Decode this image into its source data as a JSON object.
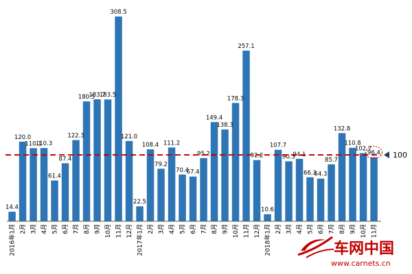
{
  "chart_data": {
    "type": "bar",
    "title": "",
    "xlabel": "",
    "ylabel": "",
    "ylim": [
      0,
      320
    ],
    "grid": false,
    "categories": [
      "2016年1月",
      "2月",
      "3月",
      "4月",
      "5月",
      "6月",
      "7月",
      "8月",
      "9月",
      "10月",
      "11月",
      "12月",
      "2017年1月",
      "2月",
      "3月",
      "4月",
      "5月",
      "6月",
      "7月",
      "8月",
      "9月",
      "10月",
      "11月",
      "12月",
      "2018年1月",
      "2月",
      "3月",
      "4月",
      "5月",
      "6月",
      "7月",
      "8月",
      "9月",
      "10月",
      "11月"
    ],
    "series": [
      {
        "values": [
          14.4,
          120.0,
          110.1,
          110.3,
          61.4,
          87.4,
          122.3,
          180.5,
          183.7,
          183.5,
          308.5,
          121.0,
          22.5,
          108.4,
          79.2,
          111.2,
          70.4,
          67.4,
          95.2,
          149.4,
          138.3,
          178.3,
          257.1,
          92.2,
          10.6,
          107.7,
          90.3,
          94.1,
          66.3,
          64.3,
          85.7,
          132.8,
          110.8,
          102.7,
          96.4
        ]
      }
    ],
    "value_labels": [
      "14.4",
      "120.0",
      "110.1",
      "110.3",
      "61.4",
      "87.4",
      "122.3",
      "180.5",
      "183.7",
      "183.5",
      "308.5",
      "121.0",
      "22.5",
      "108.4",
      "79.2",
      "111.2",
      "70.4",
      "67.4",
      "95.2",
      "149.4",
      "138.3",
      "178.3",
      "257.1",
      "92.2",
      "10.6",
      "107.7",
      "90.3",
      "94.1",
      "66.3",
      "64.3",
      "85.7",
      "132.8",
      "110.8",
      "102.7",
      "96.4"
    ],
    "reference_line": {
      "value": 100,
      "label": "100",
      "color": "#c00000",
      "style": "dashed"
    },
    "highlighted_index": 34,
    "bar_color": "#2e75b6"
  },
  "watermark": {
    "name": "车网中国",
    "url": "www.carnets.cn",
    "color": "#c00000"
  }
}
